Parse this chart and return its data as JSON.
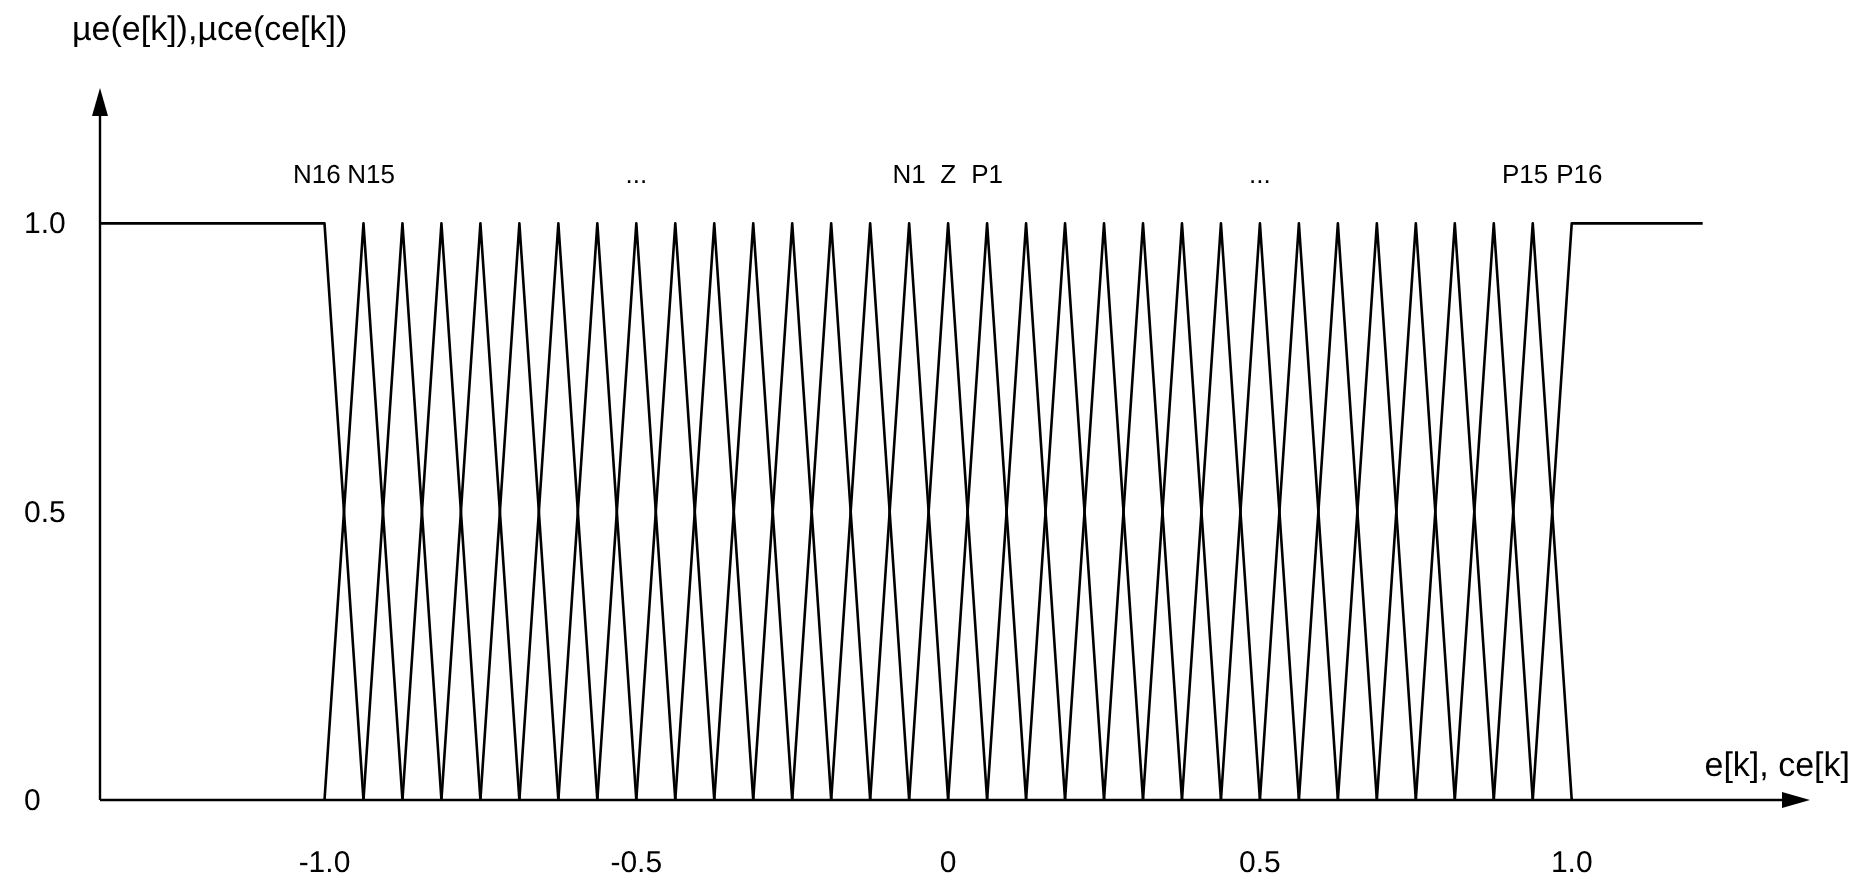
{
  "chart_data": {
    "type": "line",
    "xlabel": "e[k], ce[k]",
    "ylabel": "µe(e[k]),µce(ce[k])",
    "xlim": [
      -1.36,
      1.35
    ],
    "ylim": [
      0,
      1.2
    ],
    "xticks": [
      {
        "value": -1,
        "label": "-1.0"
      },
      -0.5,
      0,
      0.5,
      {
        "value": 1,
        "label": "1.0"
      }
    ],
    "yticks": [
      0,
      0.5,
      {
        "value": 1,
        "label": "1.0"
      }
    ],
    "annotations": [
      {
        "text": "N16",
        "x": -1,
        "y": 1
      },
      {
        "text": "N15",
        "x": -0.9375,
        "y": 1
      },
      {
        "text": "...",
        "x": -0.5,
        "y": 1
      },
      {
        "text": "N1",
        "x": -0.0625,
        "y": 1
      },
      {
        "text": "Z",
        "x": 0,
        "y": 1
      },
      {
        "text": "P1",
        "x": 0.0625,
        "y": 1
      },
      {
        "text": "...",
        "x": 0.5,
        "y": 1
      },
      {
        "text": "P15",
        "x": 0.9375,
        "y": 1
      },
      {
        "text": "P16",
        "x": 1,
        "y": 1
      }
    ],
    "series": [
      {
        "color": "#000000",
        "x": [
          -1.36,
          -1,
          -0.9375
        ],
        "values": [
          1,
          1,
          0
        ]
      },
      {
        "color": "#000000",
        "x": [
          -1,
          -0.9375,
          -0.875
        ],
        "values": [
          0,
          1,
          0
        ]
      },
      {
        "color": "#000000",
        "x": [
          -0.9375,
          -0.875,
          -0.8125
        ],
        "values": [
          0,
          1,
          0
        ]
      },
      {
        "color": "#000000",
        "x": [
          -0.875,
          -0.8125,
          -0.75
        ],
        "values": [
          0,
          1,
          0
        ]
      },
      {
        "color": "#000000",
        "x": [
          -0.8125,
          -0.75,
          -0.6875
        ],
        "values": [
          0,
          1,
          0
        ]
      },
      {
        "color": "#000000",
        "x": [
          -0.75,
          -0.6875,
          -0.625
        ],
        "values": [
          0,
          1,
          0
        ]
      },
      {
        "color": "#000000",
        "x": [
          -0.6875,
          -0.625,
          -0.5625
        ],
        "values": [
          0,
          1,
          0
        ]
      },
      {
        "color": "#000000",
        "x": [
          -0.625,
          -0.5625,
          -0.5
        ],
        "values": [
          0,
          1,
          0
        ]
      },
      {
        "color": "#000000",
        "x": [
          -0.5625,
          -0.5,
          -0.4375
        ],
        "values": [
          0,
          1,
          0
        ]
      },
      {
        "color": "#000000",
        "x": [
          -0.5,
          -0.4375,
          -0.375
        ],
        "values": [
          0,
          1,
          0
        ]
      },
      {
        "color": "#000000",
        "x": [
          -0.4375,
          -0.375,
          -0.3125
        ],
        "values": [
          0,
          1,
          0
        ]
      },
      {
        "color": "#000000",
        "x": [
          -0.375,
          -0.3125,
          -0.25
        ],
        "values": [
          0,
          1,
          0
        ]
      },
      {
        "color": "#000000",
        "x": [
          -0.3125,
          -0.25,
          -0.1875
        ],
        "values": [
          0,
          1,
          0
        ]
      },
      {
        "color": "#000000",
        "x": [
          -0.25,
          -0.1875,
          -0.125
        ],
        "values": [
          0,
          1,
          0
        ]
      },
      {
        "color": "#000000",
        "x": [
          -0.1875,
          -0.125,
          -0.0625
        ],
        "values": [
          0,
          1,
          0
        ]
      },
      {
        "color": "#000000",
        "x": [
          -0.125,
          -0.0625,
          0
        ],
        "values": [
          0,
          1,
          0
        ]
      },
      {
        "color": "#000000",
        "x": [
          -0.0625,
          0,
          0.0625
        ],
        "values": [
          0,
          1,
          0
        ]
      },
      {
        "color": "#000000",
        "x": [
          0,
          0.0625,
          0.125
        ],
        "values": [
          0,
          1,
          0
        ]
      },
      {
        "color": "#000000",
        "x": [
          0.0625,
          0.125,
          0.1875
        ],
        "values": [
          0,
          1,
          0
        ]
      },
      {
        "color": "#000000",
        "x": [
          0.125,
          0.1875,
          0.25
        ],
        "values": [
          0,
          1,
          0
        ]
      },
      {
        "color": "#000000",
        "x": [
          0.1875,
          0.25,
          0.3125
        ],
        "values": [
          0,
          1,
          0
        ]
      },
      {
        "color": "#000000",
        "x": [
          0.25,
          0.3125,
          0.375
        ],
        "values": [
          0,
          1,
          0
        ]
      },
      {
        "color": "#000000",
        "x": [
          0.3125,
          0.375,
          0.4375
        ],
        "values": [
          0,
          1,
          0
        ]
      },
      {
        "color": "#000000",
        "x": [
          0.375,
          0.4375,
          0.5
        ],
        "values": [
          0,
          1,
          0
        ]
      },
      {
        "color": "#000000",
        "x": [
          0.4375,
          0.5,
          0.5625
        ],
        "values": [
          0,
          1,
          0
        ]
      },
      {
        "color": "#000000",
        "x": [
          0.5,
          0.5625,
          0.625
        ],
        "values": [
          0,
          1,
          0
        ]
      },
      {
        "color": "#000000",
        "x": [
          0.5625,
          0.625,
          0.6875
        ],
        "values": [
          0,
          1,
          0
        ]
      },
      {
        "color": "#000000",
        "x": [
          0.625,
          0.6875,
          0.75
        ],
        "values": [
          0,
          1,
          0
        ]
      },
      {
        "color": "#000000",
        "x": [
          0.6875,
          0.75,
          0.8125
        ],
        "values": [
          0,
          1,
          0
        ]
      },
      {
        "color": "#000000",
        "x": [
          0.75,
          0.8125,
          0.875
        ],
        "values": [
          0,
          1,
          0
        ]
      },
      {
        "color": "#000000",
        "x": [
          0.8125,
          0.875,
          0.9375
        ],
        "values": [
          0,
          1,
          0
        ]
      },
      {
        "color": "#000000",
        "x": [
          0.875,
          0.9375,
          1
        ],
        "values": [
          0,
          1,
          0
        ]
      },
      {
        "color": "#000000",
        "x": [
          0.9375,
          1,
          1.21
        ],
        "values": [
          0,
          1,
          1
        ]
      }
    ]
  }
}
